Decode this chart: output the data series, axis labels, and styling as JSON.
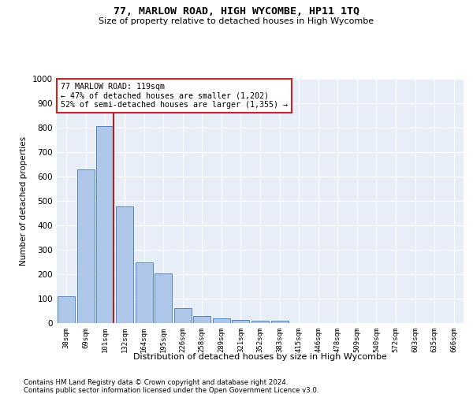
{
  "title": "77, MARLOW ROAD, HIGH WYCOMBE, HP11 1TQ",
  "subtitle": "Size of property relative to detached houses in High Wycombe",
  "xlabel": "Distribution of detached houses by size in High Wycombe",
  "ylabel": "Number of detached properties",
  "categories": [
    "38sqm",
    "69sqm",
    "101sqm",
    "132sqm",
    "164sqm",
    "195sqm",
    "226sqm",
    "258sqm",
    "289sqm",
    "321sqm",
    "352sqm",
    "383sqm",
    "415sqm",
    "446sqm",
    "478sqm",
    "509sqm",
    "540sqm",
    "572sqm",
    "603sqm",
    "635sqm",
    "666sqm"
  ],
  "values": [
    110,
    630,
    808,
    478,
    250,
    202,
    60,
    28,
    18,
    13,
    10,
    10,
    0,
    0,
    0,
    0,
    0,
    0,
    0,
    0,
    0
  ],
  "bar_color": "#aec6e8",
  "bar_edge_color": "#5588bb",
  "property_bin_index": 2,
  "property_label": "77 MARLOW ROAD: 119sqm",
  "annotation_line1": "← 47% of detached houses are smaller (1,202)",
  "annotation_line2": "52% of semi-detached houses are larger (1,355) →",
  "vline_color": "#aa2222",
  "annotation_box_color": "#ffffff",
  "annotation_box_edge": "#cc2222",
  "ylim": [
    0,
    1000
  ],
  "yticks": [
    0,
    100,
    200,
    300,
    400,
    500,
    600,
    700,
    800,
    900,
    1000
  ],
  "background_color": "#e8eef8",
  "footer1": "Contains HM Land Registry data © Crown copyright and database right 2024.",
  "footer2": "Contains public sector information licensed under the Open Government Licence v3.0."
}
